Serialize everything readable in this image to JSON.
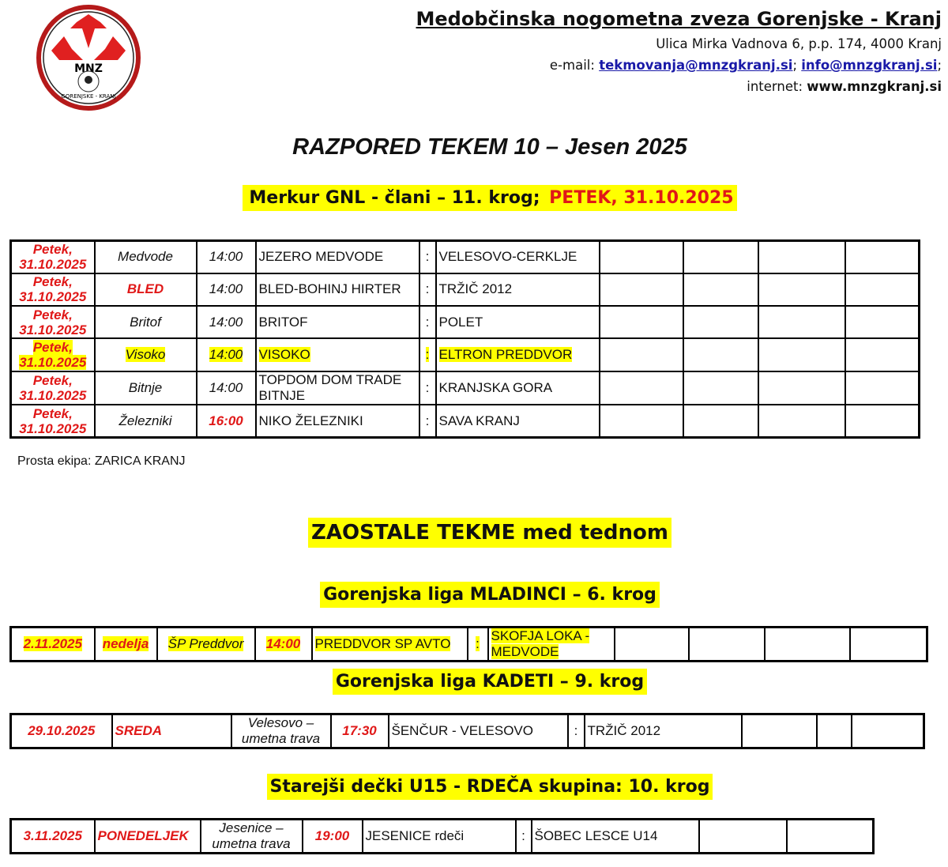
{
  "header": {
    "logo_text": "MNZ GORENJSKE - KRANJ",
    "org_name": "Medobčinska nogometna zveza Gorenjske - Kranj",
    "address": "Ulica Mirka Vadnova 6, p.p. 174, 4000 Kranj",
    "email_label": "e-mail:",
    "email_1": "tekmovanja@mnzgkranj.si",
    "email_2": "info@mnzgkranj.si",
    "internet_label": "internet:",
    "website": "www.mnzgkranj.si"
  },
  "title": "RAZPORED TEKEM 10 – Jesen 2025",
  "section_1": {
    "title": "Merkur GNL - člani – 11. krog; ",
    "title_red": "PETEK, 31.10.2025"
  },
  "colors": {
    "accent_red": "#e01818",
    "highlight": "#ffff00"
  },
  "tables": {
    "main": {
      "rows": [
        {
          "cells": [
            "Petek, 31.10.2025",
            "Medvode",
            "14:00",
            "JEZERO MEDVODE",
            ":",
            "VELESOVO-CERKLJE",
            "",
            "",
            "",
            ""
          ],
          "red": [
            0
          ],
          "highlighted": false
        },
        {
          "cells": [
            "Petek, 31.10.2025",
            "BLED",
            "14:00",
            "BLED-BOHINJ HIRTER",
            ":",
            "TRŽIČ 2012",
            "",
            "",
            "",
            ""
          ],
          "red": [
            0,
            1
          ],
          "highlighted": false
        },
        {
          "cells": [
            "Petek, 31.10.2025",
            "Britof",
            "14:00",
            "BRITOF",
            ":",
            "POLET",
            "",
            "",
            "",
            ""
          ],
          "red": [
            0
          ],
          "highlighted": false
        },
        {
          "cells": [
            "Petek, 31.10.2025",
            "Visoko",
            "14:00",
            "VISOKO",
            ":",
            "ELTRON PREDDVOR",
            "",
            "",
            "",
            ""
          ],
          "red": [
            0
          ],
          "highlighted": true
        },
        {
          "cells": [
            "Petek, 31.10.2025",
            "Bitnje",
            "14:00",
            "TOPDOM DOM TRADE BITNJE",
            ":",
            "KRANJSKA GORA",
            "",
            "",
            "",
            ""
          ],
          "red": [
            0
          ],
          "highlighted": false
        },
        {
          "cells": [
            "Petek, 31.10.2025",
            "Železniki",
            "16:00",
            "NIKO ŽELEZNIKI",
            ":",
            "SAVA KRANJ",
            "",
            "",
            "",
            ""
          ],
          "red": [
            0,
            2
          ],
          "highlighted": false
        }
      ]
    },
    "mladinci": {
      "rows": [
        {
          "cells": [
            "2.11.2025",
            "nedelja",
            "ŠP Preddvor",
            "14:00",
            "PREDDVOR SP AVTO",
            ":",
            "SKOFJA LOKA - MEDVODE",
            "",
            "",
            "",
            ""
          ],
          "red": [
            0,
            1,
            3
          ],
          "highlighted": true
        }
      ]
    },
    "kadeti": {
      "rows": [
        {
          "cells": [
            "29.10.2025",
            "SREDA",
            "Velesovo – umetna trava",
            "17:30",
            "ŠENČUR - VELESOVO",
            ":",
            "TRŽIČ 2012",
            "",
            "",
            ""
          ],
          "red": [
            0,
            1,
            3
          ],
          "highlighted": false
        }
      ]
    },
    "u15": {
      "rows": [
        {
          "cells": [
            "3.11.2025",
            "PONEDELJEK",
            "Jesenice – umetna trava",
            "19:00",
            "JESENICE rdeči",
            ":",
            "ŠOBEC LESCE U14",
            "",
            ""
          ],
          "red": [
            0,
            1,
            3
          ],
          "highlighted": false
        }
      ]
    }
  },
  "free_team": "Prosta ekipa: ZARICA KRANJ",
  "section_2": "ZAOSTALE TEKME med tednom",
  "section_3": "Gorenjska liga MLADINCI – 6. krog",
  "section_4": "Gorenjska liga KADETI – 9. krog",
  "section_5": "Starejši dečki U15 - RDEČA skupina: 10. krog"
}
